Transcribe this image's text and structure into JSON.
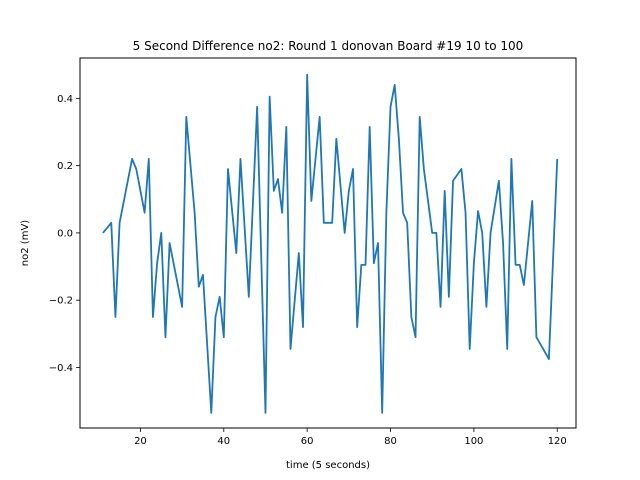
{
  "chart_data": {
    "type": "line",
    "title": "5 Second Difference no2: Round 1 donovan Board #19 10 to 100",
    "xlabel": "time (5 seconds)",
    "ylabel": "no2 (mV)",
    "xlim": [
      5.5,
      124.5
    ],
    "ylim": [
      -0.58,
      0.52
    ],
    "xticks": [
      20,
      40,
      60,
      80,
      100,
      120
    ],
    "yticks": [
      -0.4,
      -0.2,
      0.0,
      0.2,
      0.4
    ],
    "xtick_labels": [
      "20",
      "40",
      "60",
      "80",
      "100",
      "120"
    ],
    "ytick_labels": [
      "−0.4",
      "−0.2",
      "0.0",
      "0.2",
      "0.4"
    ],
    "grid": false,
    "line_color": "#1f77b4",
    "series": [
      {
        "x": [
          11,
          13,
          14,
          15,
          18,
          19,
          21,
          22,
          23,
          24,
          25,
          26,
          27,
          30,
          31,
          33,
          34,
          35,
          37,
          38,
          39,
          40,
          41,
          43,
          44,
          46,
          48,
          50,
          51,
          52,
          53,
          54,
          55,
          56,
          58,
          59,
          60,
          61,
          62,
          63,
          64,
          66,
          67,
          69,
          70,
          71,
          72,
          73,
          74,
          75,
          76,
          77,
          78,
          79,
          80,
          81,
          82,
          83,
          84,
          85,
          86,
          87,
          88,
          90,
          91,
          92,
          93,
          94,
          95,
          97,
          98,
          99,
          100,
          101,
          102,
          103,
          104,
          106,
          107,
          108,
          109,
          110,
          111,
          112,
          114,
          115,
          118,
          120
        ],
        "y": [
          0.0,
          0.03,
          -0.25,
          0.03,
          0.22,
          0.19,
          0.06,
          0.22,
          -0.25,
          -0.09,
          0.0,
          -0.31,
          -0.03,
          -0.22,
          0.345,
          0.06,
          -0.16,
          -0.125,
          -0.535,
          -0.25,
          -0.19,
          -0.31,
          0.19,
          -0.06,
          0.22,
          -0.19,
          0.375,
          -0.535,
          0.405,
          0.125,
          0.16,
          0.06,
          0.315,
          -0.345,
          -0.06,
          -0.28,
          0.47,
          0.095,
          0.22,
          0.345,
          0.03,
          0.03,
          0.28,
          0.0,
          0.125,
          0.19,
          -0.28,
          -0.095,
          -0.095,
          0.315,
          -0.09,
          -0.03,
          -0.535,
          0.06,
          0.375,
          0.44,
          0.28,
          0.06,
          0.03,
          -0.25,
          -0.31,
          0.345,
          0.19,
          0.0,
          0.0,
          -0.22,
          0.125,
          -0.19,
          0.155,
          0.19,
          0.06,
          -0.345,
          -0.09,
          0.065,
          0.0,
          -0.22,
          0.0,
          0.155,
          -0.03,
          -0.345,
          0.22,
          -0.095,
          -0.095,
          -0.155,
          0.095,
          -0.31,
          -0.375,
          0.22
        ]
      }
    ]
  }
}
